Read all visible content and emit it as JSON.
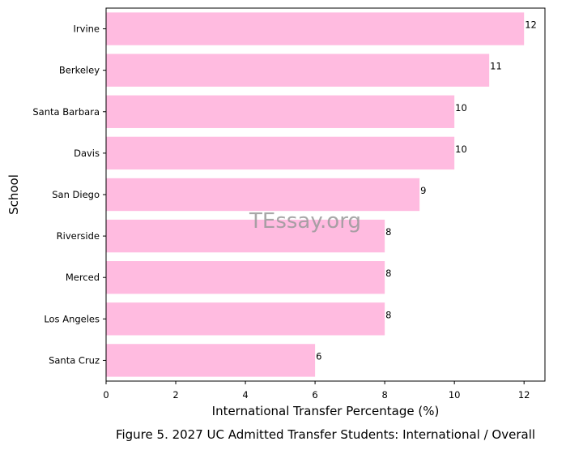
{
  "chart_data": {
    "type": "bar",
    "orientation": "horizontal",
    "categories": [
      "Irvine",
      "Berkeley",
      "Santa Barbara",
      "Davis",
      "San Diego",
      "Riverside",
      "Merced",
      "Los Angeles",
      "Santa Cruz"
    ],
    "values": [
      12,
      11,
      10,
      10,
      9,
      8,
      8,
      8,
      6
    ],
    "data_labels": [
      "12",
      "11",
      "10",
      "10",
      "9",
      "8",
      "8",
      "8",
      "6"
    ],
    "xlabel": "International Transfer Percentage (%)",
    "ylabel": "School",
    "xlim": [
      0,
      12.6
    ],
    "xticks": [
      0,
      2,
      4,
      6,
      8,
      10,
      12
    ],
    "xtick_labels": [
      "0",
      "2",
      "4",
      "6",
      "8",
      "10",
      "12"
    ],
    "bar_color": "#ffbbe0",
    "grid": false,
    "caption": "Figure 5. 2027 UC Admitted Transfer Students: International / Overall",
    "watermark": "TEssay.org"
  }
}
